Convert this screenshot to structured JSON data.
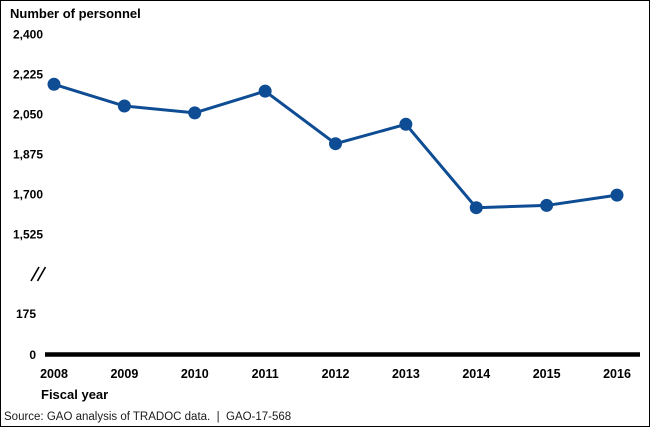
{
  "chart_data": {
    "type": "line",
    "title": "Number of personnel",
    "xlabel": "Fiscal year",
    "categories": [
      2008,
      2009,
      2010,
      2011,
      2012,
      2013,
      2014,
      2015,
      2016
    ],
    "values": [
      2180,
      2085,
      2055,
      2150,
      1920,
      2005,
      1640,
      1650,
      1695
    ],
    "series_name": "Number of personnel",
    "y_ticks_upper": [
      2400,
      2225,
      2050,
      1875,
      1700,
      1525
    ],
    "y_ticks_lower": [
      175,
      0
    ],
    "axis_break_symbol": "//",
    "ylim_upper_segment": [
      1525,
      2400
    ],
    "grid": false,
    "legend": false,
    "line_color": "#0e4c94",
    "axis_color": "#000000"
  },
  "footer": {
    "source": "Source: GAO analysis of TRADOC data.  |  GAO-17-568"
  }
}
